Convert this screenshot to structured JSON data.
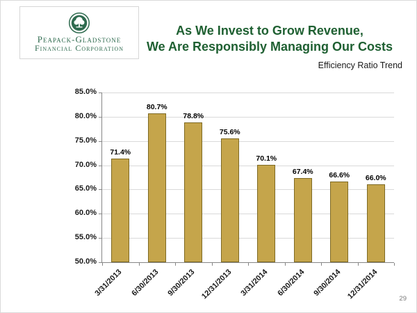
{
  "slide": {
    "logo": {
      "org_line1": "Peapack-Gladstone",
      "org_line2": "Financial Corporation",
      "emblem": "tree-seal-icon"
    },
    "title_line1": "As We Invest to Grow Revenue,",
    "title_line2": "We Are Responsibly Managing Our Costs",
    "subtitle": "Efficiency Ratio Trend",
    "page_number": "29"
  },
  "colors": {
    "title_green": "#1f6032",
    "logo_green": "#2f6b4f",
    "bar_fill": "#c5a54b",
    "bar_border": "#7e6a24",
    "gridline": "#d9d9d9",
    "axis": "#868686"
  },
  "chart_data": {
    "type": "bar",
    "title": "Efficiency Ratio Trend",
    "categories": [
      "3/31/2013",
      "6/30/2013",
      "9/30/2013",
      "12/31/2013",
      "3/31/2014",
      "6/30/2014",
      "9/30/2014",
      "12/31/2014"
    ],
    "values": [
      71.4,
      80.7,
      78.8,
      75.6,
      70.1,
      67.4,
      66.6,
      66.0
    ],
    "value_labels": [
      "71.4%",
      "80.7%",
      "78.8%",
      "75.6%",
      "70.1%",
      "67.4%",
      "66.6%",
      "66.0%"
    ],
    "xlabel": "",
    "ylabel": "",
    "ylim": [
      50,
      85
    ],
    "ytick_step": 5,
    "ytick_labels": [
      "85.0%",
      "80.0%",
      "75.0%",
      "70.0%",
      "65.0%",
      "60.0%",
      "55.0%",
      "50.0%"
    ],
    "grid": true,
    "legend": "none"
  }
}
